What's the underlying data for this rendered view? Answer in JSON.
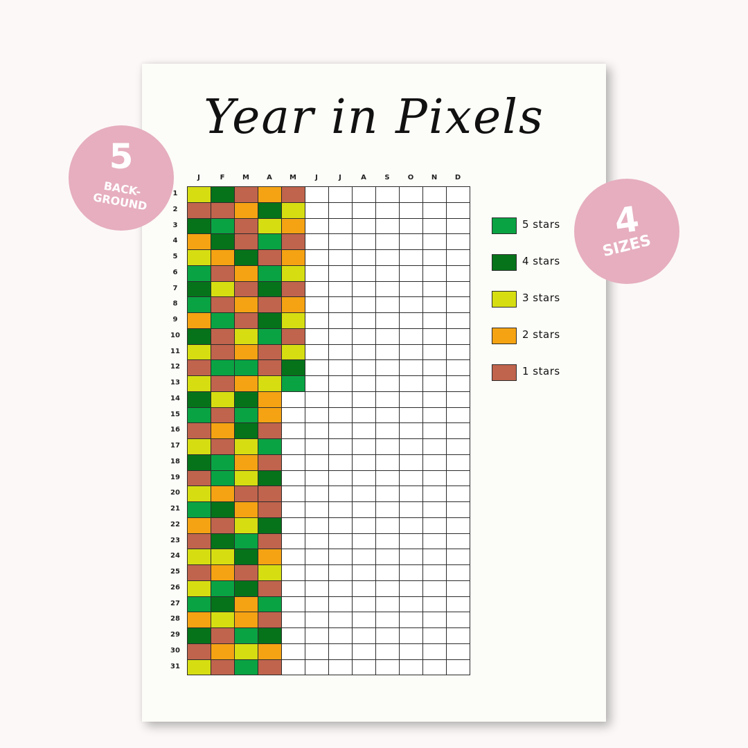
{
  "title": "Year in Pixels",
  "months": [
    "J",
    "F",
    "M",
    "A",
    "M",
    "J",
    "J",
    "A",
    "S",
    "O",
    "N",
    "D"
  ],
  "days": [
    "1",
    "2",
    "3",
    "4",
    "5",
    "6",
    "7",
    "8",
    "9",
    "10",
    "11",
    "12",
    "13",
    "14",
    "15",
    "16",
    "17",
    "18",
    "19",
    "20",
    "21",
    "22",
    "23",
    "24",
    "25",
    "26",
    "27",
    "28",
    "29",
    "30",
    "31"
  ],
  "legend": [
    {
      "label": "5 stars",
      "color": "#0aa344",
      "rating": 5
    },
    {
      "label": "4 stars",
      "color": "#06731b",
      "rating": 4
    },
    {
      "label": "3 stars",
      "color": "#d6de12",
      "rating": 3
    },
    {
      "label": "2 stars",
      "color": "#f5a313",
      "rating": 2
    },
    {
      "label": "1 stars",
      "color": "#c0644d",
      "rating": 1
    }
  ],
  "ratings": [
    [
      3,
      4,
      1,
      2,
      1
    ],
    [
      1,
      1,
      2,
      4,
      3
    ],
    [
      4,
      5,
      1,
      3,
      2
    ],
    [
      2,
      4,
      1,
      5,
      1
    ],
    [
      3,
      2,
      4,
      1,
      2
    ],
    [
      5,
      1,
      2,
      5,
      3
    ],
    [
      4,
      3,
      1,
      4,
      1
    ],
    [
      5,
      1,
      2,
      1,
      2
    ],
    [
      2,
      5,
      1,
      4,
      3
    ],
    [
      4,
      1,
      3,
      5,
      1
    ],
    [
      3,
      1,
      2,
      1,
      3
    ],
    [
      1,
      5,
      5,
      1,
      4
    ],
    [
      3,
      1,
      2,
      3,
      5
    ],
    [
      4,
      3,
      4,
      2
    ],
    [
      5,
      1,
      5,
      2
    ],
    [
      1,
      2,
      4,
      1
    ],
    [
      3,
      1,
      3,
      5
    ],
    [
      4,
      5,
      2,
      1
    ],
    [
      1,
      5,
      3,
      4
    ],
    [
      3,
      2,
      1,
      1
    ],
    [
      5,
      4,
      2,
      1
    ],
    [
      2,
      1,
      3,
      4
    ],
    [
      1,
      4,
      5,
      1
    ],
    [
      3,
      3,
      4,
      2
    ],
    [
      1,
      2,
      1,
      3
    ],
    [
      3,
      5,
      4,
      1
    ],
    [
      5,
      4,
      2,
      5
    ],
    [
      2,
      3,
      2,
      1
    ],
    [
      4,
      1,
      5,
      4
    ],
    [
      1,
      2,
      3,
      2
    ],
    [
      3,
      1,
      5,
      1
    ]
  ],
  "badges": {
    "left": {
      "number": "5",
      "text": "BACK-\nGROUND"
    },
    "right": {
      "number": "4",
      "text": "SIZES"
    }
  }
}
